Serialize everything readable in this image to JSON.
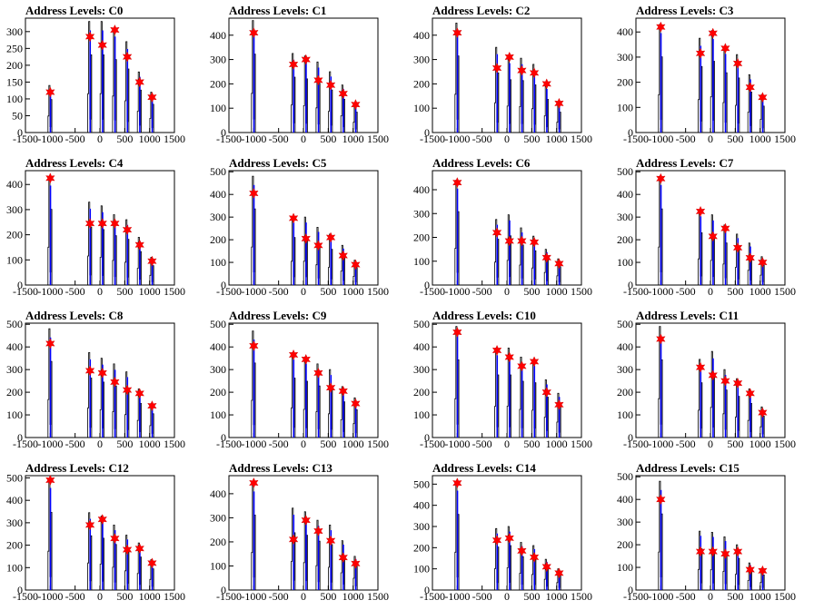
{
  "chart_data": {
    "type": "bar",
    "title_prefix": "Address Levels: ",
    "x_ticks": [
      -1500,
      -1000,
      -500,
      0,
      500,
      1000,
      1500
    ],
    "x_tick_labels": [
      "-1500",
      "-1000",
      "-500",
      "0",
      "500",
      "1000",
      "1500"
    ],
    "xlim": [
      -1500,
      1500
    ],
    "series_colors": {
      "bars": "#0000ff",
      "outline": "#000000",
      "markers": "#ff0000"
    },
    "peak_x": [
      -1000,
      -200,
      50,
      300,
      550,
      800,
      1050
    ],
    "panels": [
      {
        "name": "C0",
        "title": "Address Levels: C0",
        "ylim": [
          0,
          340
        ],
        "yticks": [
          0,
          50,
          100,
          150,
          200,
          250,
          300
        ],
        "star": [
          120,
          285,
          260,
          305,
          225,
          150,
          105
        ],
        "bars": [
          140,
          330,
          330,
          310,
          270,
          180,
          120
        ]
      },
      {
        "name": "C1",
        "title": "Address Levels: C1",
        "ylim": [
          0,
          470
        ],
        "yticks": [
          0,
          100,
          200,
          300,
          400
        ],
        "star": [
          410,
          280,
          300,
          215,
          195,
          160,
          115
        ],
        "bars": [
          460,
          325,
          315,
          290,
          250,
          195,
          120
        ]
      },
      {
        "name": "C2",
        "title": "Address Levels: C2",
        "ylim": [
          0,
          470
        ],
        "yticks": [
          0,
          100,
          200,
          300,
          400
        ],
        "star": [
          410,
          265,
          310,
          255,
          245,
          200,
          120
        ],
        "bars": [
          450,
          350,
          310,
          305,
          280,
          195,
          120
        ]
      },
      {
        "name": "C3",
        "title": "Address Levels: C3",
        "ylim": [
          0,
          455
        ],
        "yticks": [
          0,
          100,
          200,
          300,
          400
        ],
        "star": [
          420,
          315,
          395,
          335,
          275,
          180,
          140
        ],
        "bars": [
          430,
          375,
          405,
          340,
          310,
          230,
          150
        ]
      },
      {
        "name": "C4",
        "title": "Address Levels: C4",
        "ylim": [
          0,
          455
        ],
        "yticks": [
          0,
          100,
          200,
          300,
          400
        ],
        "star": [
          425,
          245,
          245,
          245,
          220,
          160,
          95
        ],
        "bars": [
          430,
          330,
          315,
          280,
          260,
          190,
          110
        ]
      },
      {
        "name": "C5",
        "title": "Address Levels: C5",
        "ylim": [
          0,
          505
        ],
        "yticks": [
          0,
          100,
          200,
          300,
          400,
          500
        ],
        "star": [
          405,
          295,
          205,
          175,
          210,
          130,
          90
        ],
        "bars": [
          480,
          300,
          300,
          255,
          225,
          175,
          110
        ]
      },
      {
        "name": "C6",
        "title": "Address Levels: C6",
        "ylim": [
          0,
          480
        ],
        "yticks": [
          0,
          100,
          200,
          300,
          400
        ],
        "star": [
          430,
          220,
          185,
          185,
          180,
          115,
          90
        ],
        "bars": [
          440,
          275,
          295,
          240,
          205,
          150,
          110
        ]
      },
      {
        "name": "C7",
        "title": "Address Levels: C7",
        "ylim": [
          0,
          505
        ],
        "yticks": [
          0,
          100,
          200,
          300,
          400,
          500
        ],
        "star": [
          470,
          325,
          215,
          250,
          165,
          120,
          100
        ],
        "bars": [
          480,
          330,
          310,
          265,
          225,
          185,
          125
        ]
      },
      {
        "name": "C8",
        "title": "Address Levels: C8",
        "ylim": [
          0,
          505
        ],
        "yticks": [
          0,
          100,
          200,
          300,
          400,
          500
        ],
        "star": [
          415,
          295,
          285,
          245,
          210,
          195,
          140
        ],
        "bars": [
          480,
          375,
          350,
          325,
          290,
          215,
          150
        ]
      },
      {
        "name": "C9",
        "title": "Address Levels: C9",
        "ylim": [
          0,
          505
        ],
        "yticks": [
          0,
          100,
          200,
          300,
          400,
          500
        ],
        "star": [
          405,
          365,
          345,
          285,
          220,
          205,
          150
        ],
        "bars": [
          470,
          375,
          355,
          325,
          300,
          225,
          175
        ]
      },
      {
        "name": "C10",
        "title": "Address Levels: C10",
        "ylim": [
          0,
          505
        ],
        "yticks": [
          0,
          100,
          200,
          300,
          400,
          500
        ],
        "star": [
          465,
          385,
          355,
          315,
          335,
          200,
          145
        ],
        "bars": [
          490,
          395,
          395,
          355,
          345,
          255,
          195
        ]
      },
      {
        "name": "C11",
        "title": "Address Levels: C11",
        "ylim": [
          0,
          505
        ],
        "yticks": [
          0,
          100,
          200,
          300,
          400,
          500
        ],
        "star": [
          435,
          310,
          275,
          250,
          240,
          195,
          110
        ],
        "bars": [
          490,
          345,
          380,
          300,
          260,
          215,
          135
        ]
      },
      {
        "name": "C12",
        "title": "Address Levels: C12",
        "ylim": [
          0,
          510
        ],
        "yticks": [
          0,
          100,
          200,
          300,
          400,
          500
        ],
        "star": [
          490,
          290,
          315,
          230,
          180,
          185,
          120
        ],
        "bars": [
          495,
          345,
          330,
          290,
          245,
          210,
          135
        ]
      },
      {
        "name": "C13",
        "title": "Address Levels: C13",
        "ylim": [
          0,
          475
        ],
        "yticks": [
          0,
          100,
          200,
          300,
          400
        ],
        "star": [
          445,
          210,
          290,
          245,
          205,
          135,
          110
        ],
        "bars": [
          445,
          340,
          325,
          290,
          270,
          205,
          140
        ]
      },
      {
        "name": "C14",
        "title": "Address Levels: C14",
        "ylim": [
          0,
          540
        ],
        "yticks": [
          0,
          100,
          200,
          300,
          400,
          500
        ],
        "star": [
          505,
          235,
          245,
          185,
          155,
          110,
          80
        ],
        "bars": [
          510,
          290,
          300,
          225,
          210,
          145,
          100
        ]
      },
      {
        "name": "C15",
        "title": "Address Levels: C15",
        "ylim": [
          0,
          505
        ],
        "yticks": [
          0,
          100,
          200,
          300,
          400,
          500
        ],
        "star": [
          400,
          170,
          170,
          160,
          170,
          90,
          85
        ],
        "bars": [
          480,
          260,
          255,
          235,
          200,
          120,
          95
        ]
      }
    ]
  }
}
